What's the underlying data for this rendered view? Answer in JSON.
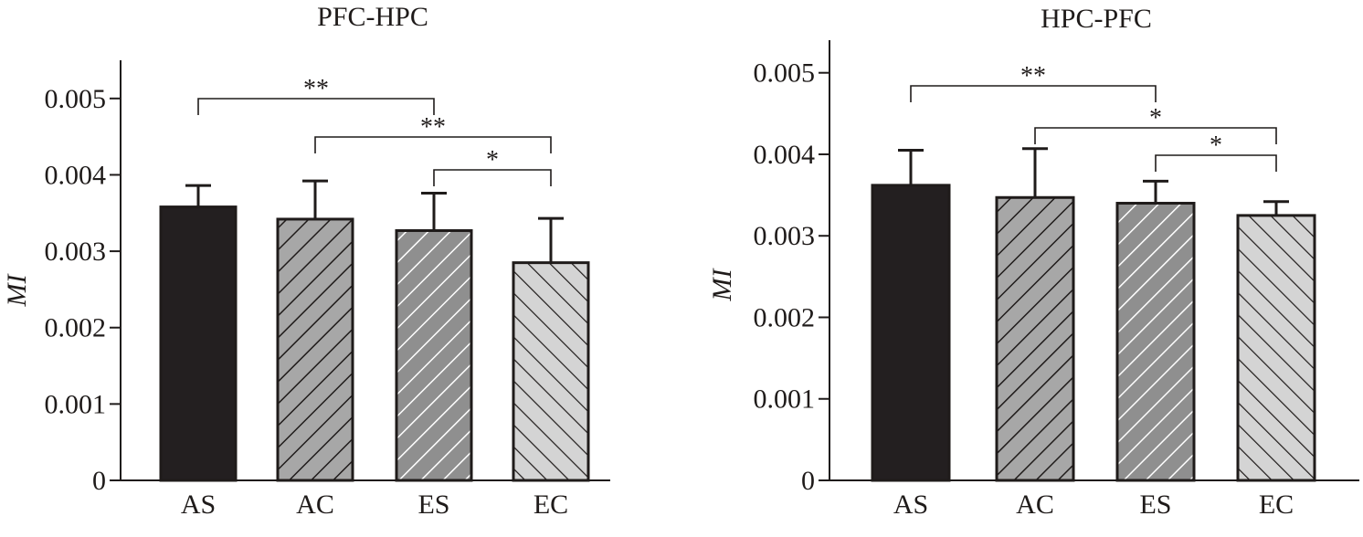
{
  "chart_data": [
    {
      "type": "bar",
      "title": "PFC-HPC",
      "xlabel": "",
      "ylabel": "MI",
      "categories": [
        "AS",
        "AC",
        "ES",
        "EC"
      ],
      "values": [
        0.00358,
        0.00342,
        0.00327,
        0.00285
      ],
      "errors": [
        0.00028,
        0.0005,
        0.00049,
        0.00058
      ],
      "ylim": [
        0,
        0.0055
      ],
      "yticks": [
        0,
        0.001,
        0.002,
        0.003,
        0.004,
        0.005
      ],
      "ytick_labels": [
        "0",
        "0.001",
        "0.002",
        "0.003",
        "0.004",
        "0.005"
      ],
      "grid": false,
      "bar_styles": [
        "solid-black",
        "gray-black-hatch-backslash",
        "gray-white-hatch-backslash",
        "lightgray-black-hatch-slash"
      ],
      "colors": {
        "AS": "#231f20",
        "AC": "#a7a7a7",
        "ES": "#8f8f8f",
        "EC": "#d4d4d4"
      },
      "significance": [
        {
          "from": "AS",
          "to": "ES",
          "label": "**"
        },
        {
          "from": "AC",
          "to": "EC",
          "label": "**"
        },
        {
          "from": "ES",
          "to": "EC",
          "label": "*"
        }
      ]
    },
    {
      "type": "bar",
      "title": "HPC-PFC",
      "xlabel": "",
      "ylabel": "MI",
      "categories": [
        "AS",
        "AC",
        "ES",
        "EC"
      ],
      "values": [
        0.00362,
        0.00347,
        0.0034,
        0.00325
      ],
      "errors": [
        0.00043,
        0.0006,
        0.00027,
        0.00017
      ],
      "ylim": [
        0,
        0.0054
      ],
      "yticks": [
        0,
        0.001,
        0.002,
        0.003,
        0.004,
        0.005
      ],
      "ytick_labels": [
        "0",
        "0.001",
        "0.002",
        "0.003",
        "0.004",
        "0.005"
      ],
      "grid": false,
      "bar_styles": [
        "solid-black",
        "gray-black-hatch-backslash",
        "gray-white-hatch-backslash",
        "lightgray-black-hatch-slash"
      ],
      "colors": {
        "AS": "#231f20",
        "AC": "#a7a7a7",
        "ES": "#8f8f8f",
        "EC": "#d4d4d4"
      },
      "significance": [
        {
          "from": "AS",
          "to": "ES",
          "label": "**"
        },
        {
          "from": "AC",
          "to": "EC",
          "label": "*"
        },
        {
          "from": "ES",
          "to": "EC",
          "label": "*"
        }
      ]
    }
  ]
}
